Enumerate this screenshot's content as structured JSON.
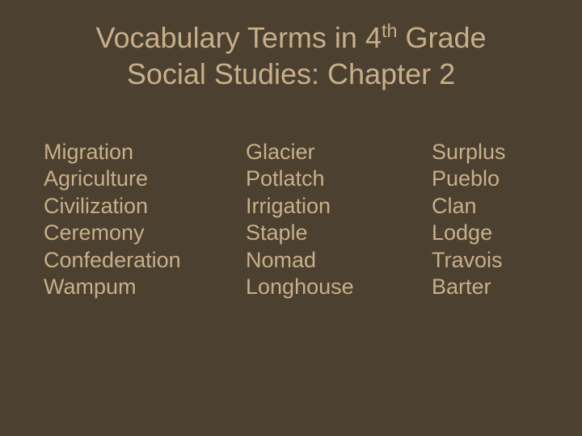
{
  "title": {
    "line1_pre": "Vocabulary Terms in 4",
    "line1_sup": "th",
    "line1_post": " Grade",
    "line2": "Social Studies: Chapter 2"
  },
  "columns": {
    "col1": [
      "Migration",
      "Agriculture",
      "Civilization",
      "Ceremony",
      "Confederation",
      "Wampum"
    ],
    "col2": [
      "Glacier",
      "Potlatch",
      "Irrigation",
      "Staple",
      "Nomad",
      "Longhouse"
    ],
    "col3": [
      "Surplus",
      "Pueblo",
      "Clan",
      "Lodge",
      "Travois",
      "Barter"
    ]
  },
  "style": {
    "background_color": "#4c4030",
    "text_color": "#c8af8a",
    "title_fontsize": 36,
    "term_fontsize": 27,
    "font_family": "Arial"
  }
}
